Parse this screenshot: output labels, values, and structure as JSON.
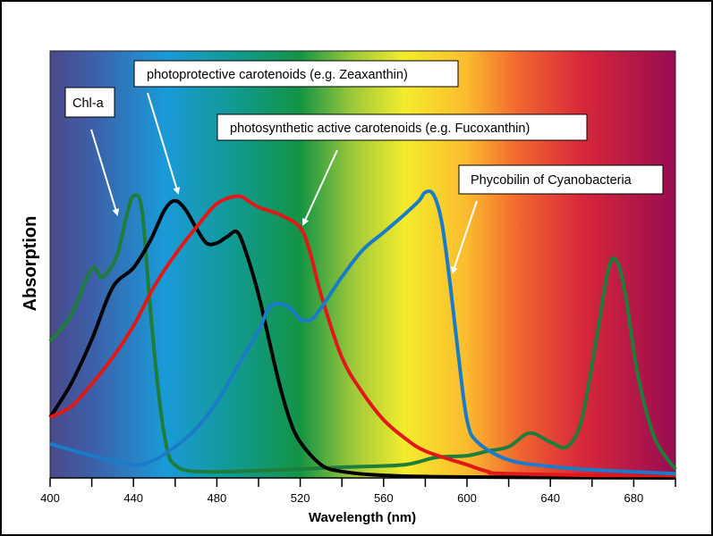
{
  "chart_data": {
    "type": "line",
    "title": "",
    "xlabel": "Wavelength (nm)",
    "ylabel": "Absorption",
    "xlim": [
      400,
      700
    ],
    "ylim": [
      0,
      1
    ],
    "xticks": [
      400,
      440,
      480,
      520,
      560,
      600,
      640,
      680
    ],
    "grid": false,
    "background": "visible light spectrum gradient",
    "spectrum_colors": [
      {
        "nm": 400,
        "color": "#4a4a8a"
      },
      {
        "nm": 420,
        "color": "#3d5fa8"
      },
      {
        "nm": 455,
        "color": "#1a9ad8"
      },
      {
        "nm": 485,
        "color": "#129a9a"
      },
      {
        "nm": 520,
        "color": "#139444"
      },
      {
        "nm": 545,
        "color": "#9cc83a"
      },
      {
        "nm": 570,
        "color": "#f4ec2c"
      },
      {
        "nm": 600,
        "color": "#fbbb2e"
      },
      {
        "nm": 625,
        "color": "#f06530"
      },
      {
        "nm": 655,
        "color": "#d8283a"
      },
      {
        "nm": 700,
        "color": "#980c52"
      }
    ],
    "series": [
      {
        "color": "#1e7d3a",
        "points": [
          [
            400,
            0.32
          ],
          [
            410,
            0.38
          ],
          [
            420,
            0.49
          ],
          [
            425,
            0.47
          ],
          [
            432,
            0.52
          ],
          [
            437,
            0.62
          ],
          [
            440,
            0.66
          ],
          [
            444,
            0.63
          ],
          [
            448,
            0.4
          ],
          [
            452,
            0.2
          ],
          [
            456,
            0.07
          ],
          [
            460,
            0.03
          ],
          [
            470,
            0.015
          ],
          [
            500,
            0.017
          ],
          [
            540,
            0.025
          ],
          [
            570,
            0.031
          ],
          [
            585,
            0.048
          ],
          [
            600,
            0.052
          ],
          [
            610,
            0.063
          ],
          [
            620,
            0.073
          ],
          [
            630,
            0.105
          ],
          [
            640,
            0.084
          ],
          [
            648,
            0.073
          ],
          [
            655,
            0.136
          ],
          [
            662,
            0.324
          ],
          [
            668,
            0.492
          ],
          [
            672,
            0.506
          ],
          [
            676,
            0.429
          ],
          [
            682,
            0.24
          ],
          [
            690,
            0.094
          ],
          [
            700,
            0.02
          ]
        ]
      },
      {
        "color": "#000000",
        "points": [
          [
            400,
            0.142
          ],
          [
            410,
            0.22
          ],
          [
            420,
            0.324
          ],
          [
            430,
            0.446
          ],
          [
            440,
            0.492
          ],
          [
            448,
            0.555
          ],
          [
            455,
            0.628
          ],
          [
            460,
            0.649
          ],
          [
            465,
            0.628
          ],
          [
            470,
            0.586
          ],
          [
            475,
            0.55
          ],
          [
            480,
            0.55
          ],
          [
            485,
            0.565
          ],
          [
            490,
            0.575
          ],
          [
            495,
            0.513
          ],
          [
            500,
            0.429
          ],
          [
            505,
            0.324
          ],
          [
            510,
            0.22
          ],
          [
            515,
            0.136
          ],
          [
            520,
            0.084
          ],
          [
            530,
            0.031
          ],
          [
            540,
            0.015
          ],
          [
            560,
            0.006
          ],
          [
            600,
            0.002
          ],
          [
            700,
            0
          ]
        ]
      },
      {
        "color": "#e01818",
        "points": [
          [
            400,
            0.142
          ],
          [
            410,
            0.167
          ],
          [
            420,
            0.22
          ],
          [
            430,
            0.282
          ],
          [
            440,
            0.356
          ],
          [
            450,
            0.449
          ],
          [
            460,
            0.523
          ],
          [
            470,
            0.586
          ],
          [
            480,
            0.642
          ],
          [
            490,
            0.66
          ],
          [
            495,
            0.649
          ],
          [
            500,
            0.634
          ],
          [
            510,
            0.617
          ],
          [
            520,
            0.586
          ],
          [
            525,
            0.523
          ],
          [
            530,
            0.429
          ],
          [
            540,
            0.282
          ],
          [
            550,
            0.199
          ],
          [
            560,
            0.136
          ],
          [
            570,
            0.094
          ],
          [
            580,
            0.063
          ],
          [
            600,
            0.031
          ],
          [
            610,
            0.015
          ],
          [
            620,
            0.01
          ],
          [
            700,
            0.002
          ]
        ]
      },
      {
        "color": "#1a7cc8",
        "points": [
          [
            400,
            0.08
          ],
          [
            420,
            0.052
          ],
          [
            440,
            0.031
          ],
          [
            450,
            0.042
          ],
          [
            460,
            0.073
          ],
          [
            470,
            0.115
          ],
          [
            480,
            0.178
          ],
          [
            490,
            0.262
          ],
          [
            500,
            0.345
          ],
          [
            505,
            0.398
          ],
          [
            510,
            0.408
          ],
          [
            515,
            0.398
          ],
          [
            520,
            0.372
          ],
          [
            525,
            0.37
          ],
          [
            530,
            0.398
          ],
          [
            540,
            0.471
          ],
          [
            550,
            0.534
          ],
          [
            560,
            0.575
          ],
          [
            570,
            0.617
          ],
          [
            577,
            0.649
          ],
          [
            580,
            0.669
          ],
          [
            584,
            0.663
          ],
          [
            588,
            0.596
          ],
          [
            592,
            0.45
          ],
          [
            596,
            0.282
          ],
          [
            600,
            0.136
          ],
          [
            605,
            0.084
          ],
          [
            620,
            0.042
          ],
          [
            640,
            0.027
          ],
          [
            660,
            0.019
          ],
          [
            700,
            0.01
          ]
        ]
      }
    ],
    "annotations": [
      {
        "text": "Chl-a",
        "points_to_nm": 440
      },
      {
        "text": "photoprotective carotenoids (e.g. Zeaxanthin)",
        "points_to_nm": 460
      },
      {
        "text": "photosynthetic active carotenoids (e.g. Fucoxanthin)",
        "points_to_nm": 524
      },
      {
        "text": "Phycobilin of Cyanobacteria",
        "points_to_nm": 596
      }
    ]
  }
}
